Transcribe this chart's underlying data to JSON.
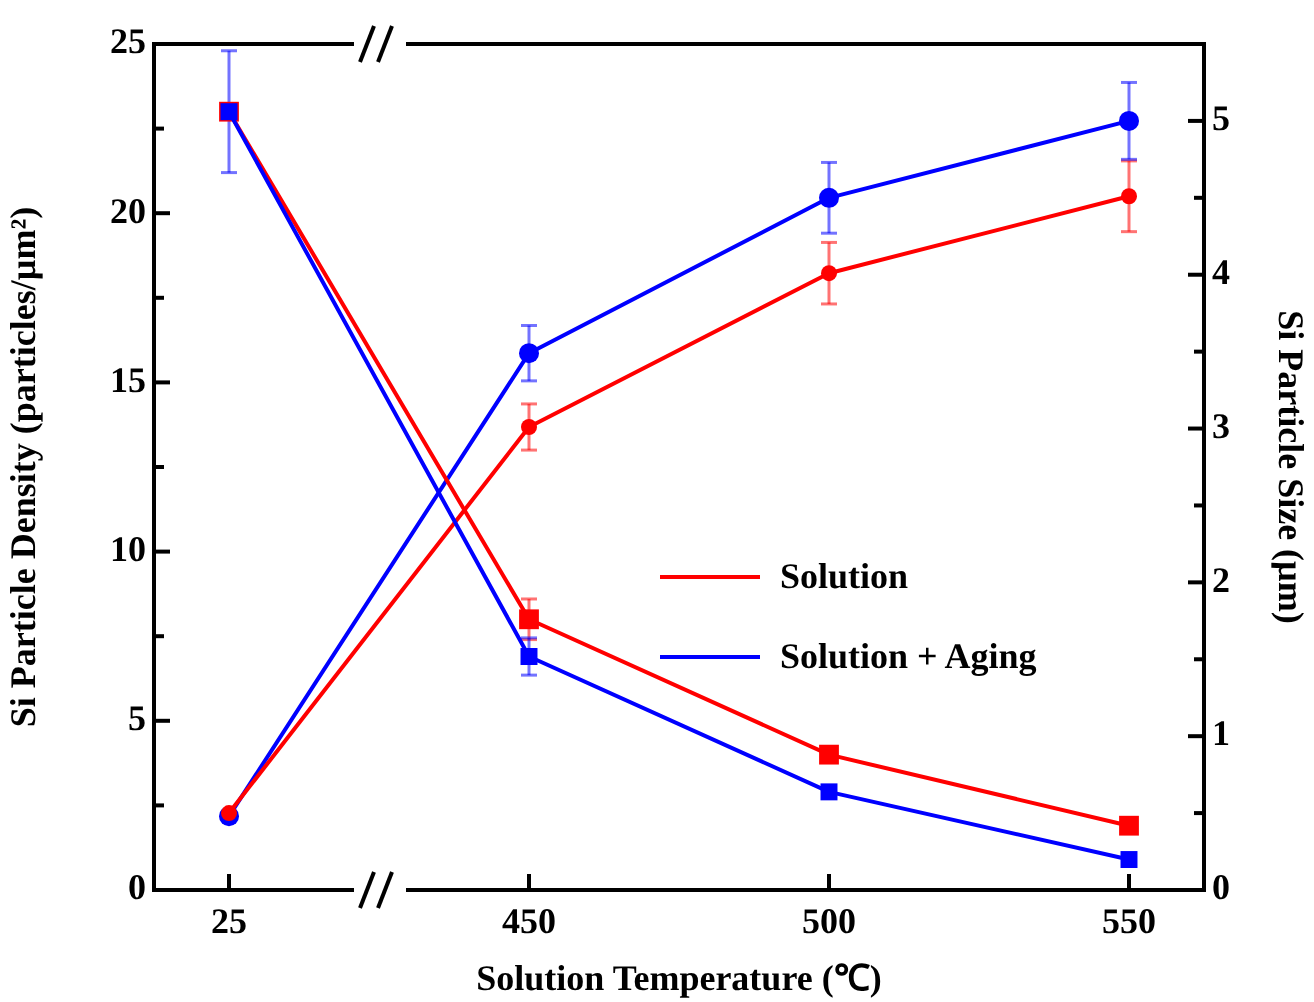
{
  "chart_data": {
    "type": "line",
    "xlabel": "Solution Temperature (℃)",
    "ylabel": "Si Particle Density (particles/µm²)",
    "y2label": "Si Particle Size (µm)",
    "categories": [
      "25",
      "450",
      "500",
      "550"
    ],
    "ylim": [
      0,
      25
    ],
    "yticks": [
      0,
      {
        "value": 2.5,
        "label": null
      },
      5,
      {
        "value": 7.5,
        "label": null
      },
      10,
      {
        "value": 12.5,
        "label": null
      },
      15,
      {
        "value": 17.5,
        "label": null
      },
      20,
      {
        "value": 22.5,
        "label": null
      },
      25
    ],
    "y2lim": [
      0,
      5.5
    ],
    "y2ticks": [
      0,
      {
        "value": 0.5,
        "label": null
      },
      1,
      {
        "value": 1.5,
        "label": null
      },
      2,
      {
        "value": 2.5,
        "label": null
      },
      3,
      {
        "value": 3.5,
        "label": null
      },
      4,
      {
        "value": 4.5,
        "label": null
      },
      5
    ],
    "legend": "right",
    "series": [
      {
        "name": "Solution",
        "color": "#ff0000",
        "marker": "square",
        "values": [
          23,
          8,
          4,
          1.9
        ],
        "errors": [
          null,
          0.6,
          null,
          null
        ]
      },
      {
        "name": "Solution + Aging",
        "color": "#0000ff",
        "marker": "square",
        "values": [
          23,
          6.9,
          2.9,
          0.9
        ],
        "errors": [
          1.8,
          0.55,
          null,
          null
        ]
      },
      {
        "color": "#ff0000",
        "marker": "circle",
        "axis": "y2",
        "values": [
          0.5,
          3.01,
          4.01,
          4.51
        ],
        "errors": [
          null,
          0.15,
          0.2,
          0.23
        ]
      },
      {
        "color": "#0000ff",
        "marker": "circle",
        "axis": "y2",
        "values": [
          0.48,
          3.49,
          4.5,
          5
        ],
        "errors": [
          null,
          0.18,
          0.23,
          0.25
        ]
      }
    ]
  }
}
